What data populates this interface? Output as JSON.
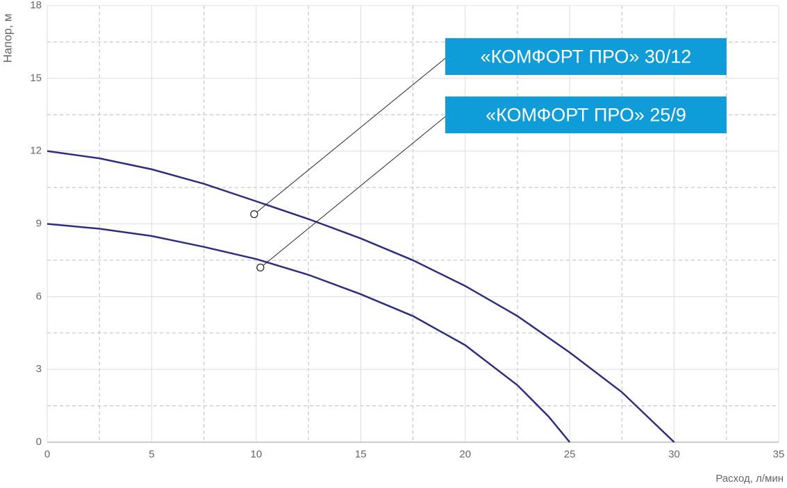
{
  "chart_data": {
    "type": "line",
    "xlabel": "Расход, л/мин",
    "ylabel": "Напор, м",
    "xlim": [
      0,
      35
    ],
    "xticks": [
      0,
      5,
      10,
      15,
      20,
      25,
      30,
      35
    ],
    "ylim": [
      0,
      18
    ],
    "yticks": [
      0,
      3,
      6,
      9,
      12,
      15,
      18
    ],
    "xminor": [
      2.5,
      7.5,
      12.5,
      17.5,
      22.5,
      27.5,
      32.5
    ],
    "yminor": [
      1.5,
      4.5,
      7.5,
      10.5,
      13.5,
      16.5
    ],
    "grid": true,
    "series": [
      {
        "name": "«КОМФОРТ ПРО» 30/12",
        "color": "#2d2e7f",
        "x": [
          0,
          2.5,
          5,
          7.5,
          10,
          12.5,
          15,
          17.5,
          20,
          22.5,
          25,
          27.5,
          30
        ],
        "values": [
          12,
          11.7,
          11.25,
          10.65,
          9.93,
          9.2,
          8.4,
          7.5,
          6.44,
          5.2,
          3.7,
          2.06,
          0
        ],
        "label_x": 9.9,
        "label_y": 9.4
      },
      {
        "name": "«КОМФОРТ ПРО» 25/9",
        "color": "#2d2e7f",
        "x": [
          0,
          2.5,
          5,
          7.5,
          10,
          12.5,
          15,
          17.5,
          20,
          22.5,
          24,
          25
        ],
        "values": [
          9,
          8.8,
          8.5,
          8.05,
          7.55,
          6.9,
          6.1,
          5.2,
          4.0,
          2.35,
          1.05,
          0
        ],
        "label_x": 10.2,
        "label_y": 7.2
      }
    ]
  }
}
